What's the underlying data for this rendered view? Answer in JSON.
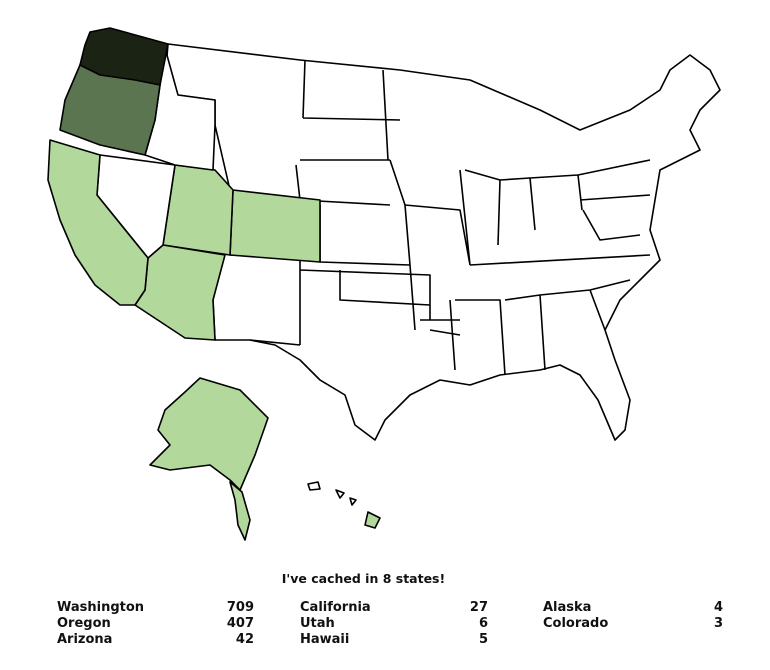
{
  "title": "I've cached in 8 states!",
  "colors": {
    "none": "#ffffff",
    "low": "#b3d89c",
    "medium": "#5b7551",
    "high": "#1b2414",
    "outline": "#000000"
  },
  "states": [
    {
      "name": "Washington",
      "count": "709",
      "level": "high"
    },
    {
      "name": "Oregon",
      "count": "407",
      "level": "medium"
    },
    {
      "name": "Arizona",
      "count": "42",
      "level": "low"
    },
    {
      "name": "California",
      "count": "27",
      "level": "low"
    },
    {
      "name": "Utah",
      "count": "6",
      "level": "low"
    },
    {
      "name": "Hawaii",
      "count": "5",
      "level": "low"
    },
    {
      "name": "Alaska",
      "count": "4",
      "level": "low"
    },
    {
      "name": "Colorado",
      "count": "3",
      "level": "low"
    }
  ]
}
